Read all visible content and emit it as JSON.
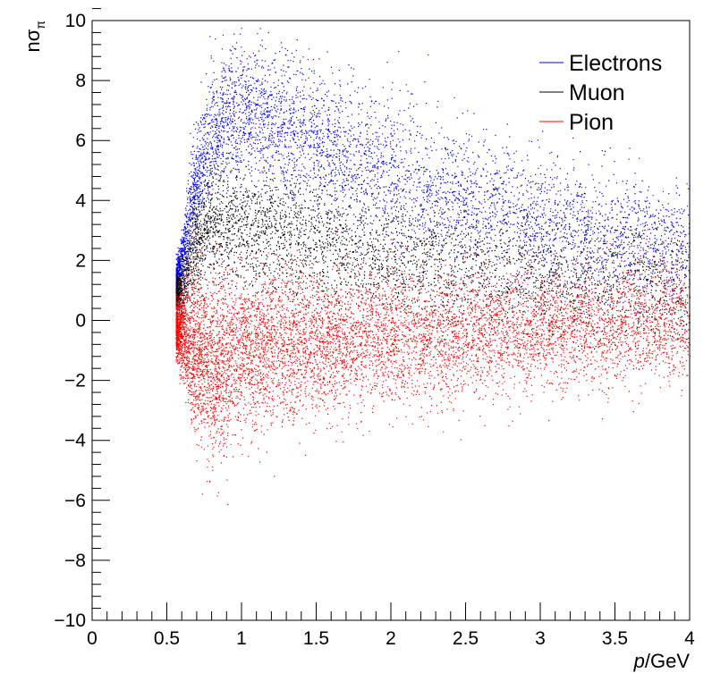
{
  "chart_data": {
    "type": "scatter",
    "title": "",
    "xlabel_italic": "p",
    "xlabel_rest": "/GeV",
    "ylabel_main": "nσ",
    "ylabel_sub": "π",
    "xlim": [
      0,
      4
    ],
    "ylim": [
      -10,
      10
    ],
    "xticks": [
      0,
      0.5,
      1,
      1.5,
      2,
      2.5,
      3,
      3.5,
      4
    ],
    "xtick_labels": [
      "0",
      "0.5",
      "1",
      "1.5",
      "2",
      "2.5",
      "3",
      "3.5",
      "4"
    ],
    "yticks": [
      -10,
      -8,
      -6,
      -4,
      -2,
      0,
      2,
      4,
      6,
      8,
      10
    ],
    "ytick_labels": [
      "−10",
      "−8",
      "−6",
      "−4",
      "−2",
      "0",
      "2",
      "4",
      "6",
      "8",
      "10"
    ],
    "grid": false,
    "legend_position": "top-right",
    "series": [
      {
        "name": "Electrons",
        "color": "#0000ff",
        "description_points": [
          {
            "p": 0.6,
            "mean": 3.0,
            "spread": 0.9
          },
          {
            "p": 0.8,
            "mean": 6.3,
            "spread": 1.1
          },
          {
            "p": 1.0,
            "mean": 6.9,
            "spread": 1.2
          },
          {
            "p": 1.5,
            "mean": 6.0,
            "spread": 1.2
          },
          {
            "p": 2.0,
            "mean": 4.8,
            "spread": 1.2
          },
          {
            "p": 3.0,
            "mean": 3.3,
            "spread": 1.1
          },
          {
            "p": 4.0,
            "mean": 2.4,
            "spread": 1.0
          }
        ]
      },
      {
        "name": "Muon",
        "color": "#000000",
        "description_points": [
          {
            "p": 0.6,
            "mean": 1.8,
            "spread": 0.8
          },
          {
            "p": 0.8,
            "mean": 3.3,
            "spread": 0.9
          },
          {
            "p": 1.0,
            "mean": 3.1,
            "spread": 1.0
          },
          {
            "p": 1.5,
            "mean": 2.6,
            "spread": 1.0
          },
          {
            "p": 2.0,
            "mean": 2.1,
            "spread": 1.0
          },
          {
            "p": 3.0,
            "mean": 1.5,
            "spread": 1.0
          },
          {
            "p": 4.0,
            "mean": 1.2,
            "spread": 1.0
          }
        ]
      },
      {
        "name": "Pion",
        "color": "#ff0000",
        "description_points": [
          {
            "p": 0.6,
            "mean": -0.5,
            "spread": 1.2
          },
          {
            "p": 0.8,
            "mean": -1.5,
            "spread": 1.6
          },
          {
            "p": 1.0,
            "mean": -1.0,
            "spread": 1.3
          },
          {
            "p": 1.5,
            "mean": -0.8,
            "spread": 1.2
          },
          {
            "p": 2.0,
            "mean": -0.6,
            "spread": 1.1
          },
          {
            "p": 3.0,
            "mean": -0.3,
            "spread": 1.0
          },
          {
            "p": 4.0,
            "mean": 0.0,
            "spread": 1.0
          }
        ]
      }
    ]
  }
}
